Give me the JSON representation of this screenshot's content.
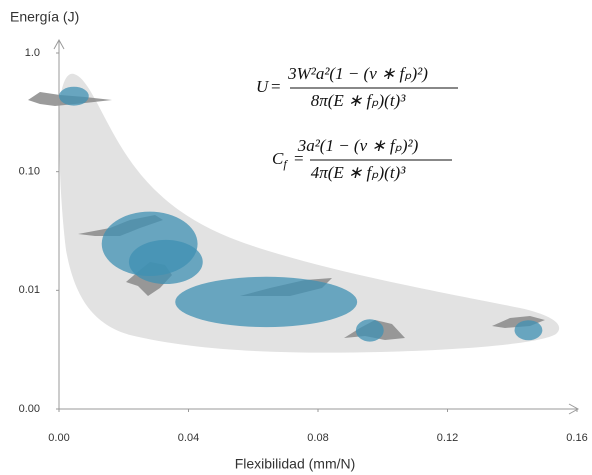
{
  "chart_data": {
    "type": "bubble",
    "y_label": "Energía (J)",
    "x_label": "Flexibilidad (mm/N)",
    "log_y": true,
    "xlim": [
      0,
      0.16
    ],
    "xticks": [
      {
        "value": 0,
        "label": "0.00"
      },
      {
        "value": 0.04,
        "label": "0.04"
      },
      {
        "value": 0.08,
        "label": "0.08"
      },
      {
        "value": 0.12,
        "label": "0.12"
      },
      {
        "value": 0.16,
        "label": "0.16"
      }
    ],
    "ylim": [
      0.001,
      1
    ],
    "yticks": [
      {
        "value": 0.001,
        "label": "0.00"
      },
      {
        "value": 0.01,
        "label": "0.01"
      },
      {
        "value": 0.1,
        "label": "0.10"
      },
      {
        "value": 1,
        "label": "1.0"
      }
    ],
    "color": "#3f90b3",
    "x": [
      0.0046,
      0.028,
      0.033,
      0.064,
      0.096,
      0.145
    ],
    "values": [
      0.43,
      0.025,
      0.0173,
      0.008,
      0.0046,
      0.0046
    ],
    "x_err": [
      0.0046,
      0.0148,
      0.0114,
      0.0281,
      0.0043,
      0.0043
    ],
    "y_low": [
      0.36,
      0.0132,
      0.0113,
      0.0049,
      0.0037,
      0.0038
    ],
    "y_high": [
      0.52,
      0.046,
      0.0266,
      0.013,
      0.0057,
      0.0056
    ],
    "formulas": [
      {
        "lhs": "U",
        "lhs_sub": "",
        "equals": "=",
        "numerator": "3W²a²(1 − (v ∗ fₚ)²)",
        "denominator": "8π(E ∗ fₚ)(t)³"
      },
      {
        "lhs": "C",
        "lhs_sub": "f",
        "equals": "=",
        "numerator": "3a²(1 − (v ∗ fₚ)²)",
        "denominator": "4π(E ∗ fₚ)(t)³"
      }
    ]
  }
}
